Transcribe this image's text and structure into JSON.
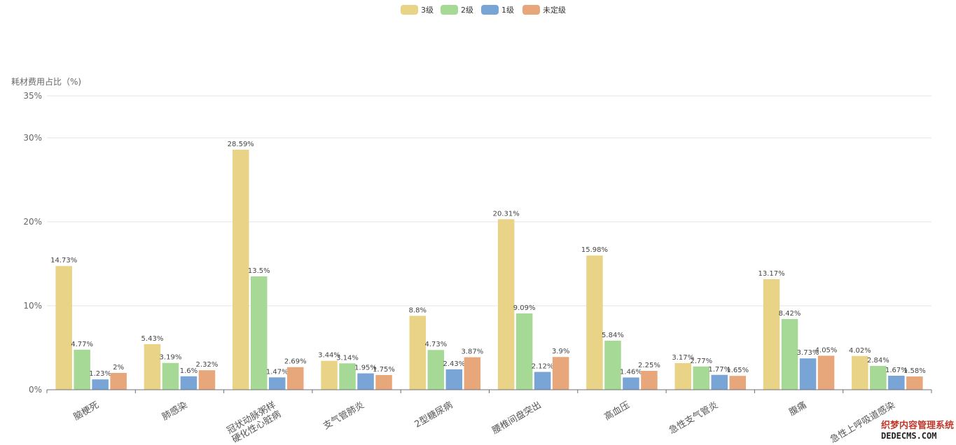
{
  "chart_data": {
    "type": "bar",
    "ylabel": "耗材费用占比（%)",
    "yticks": [
      "0%",
      "10%",
      "20%",
      "30%",
      "35%"
    ],
    "ytick_values": [
      0,
      10,
      20,
      30,
      35
    ],
    "ylim": [
      0,
      35
    ],
    "legend_position": "top-center",
    "categories": [
      "脑梗死",
      "肺感染",
      "冠状动脉粥样硬化性心脏病",
      "支气管肺炎",
      "2型糖尿病",
      "腰椎间盘突出",
      "高血压",
      "急性支气管炎",
      "腹痛",
      "急性上呼吸道感染"
    ],
    "category_lines": [
      [
        "脑梗死"
      ],
      [
        "肺感染"
      ],
      [
        "冠状动脉粥样",
        "硬化性心脏病"
      ],
      [
        "支气管肺炎"
      ],
      [
        "2型糖尿病"
      ],
      [
        "腰椎间盘突出"
      ],
      [
        "高血压"
      ],
      [
        "急性支气管炎"
      ],
      [
        "腹痛"
      ],
      [
        "急性上呼吸道感染"
      ]
    ],
    "series": [
      {
        "name": "3级",
        "color": "#e9d387",
        "values": [
          14.73,
          5.43,
          28.59,
          3.44,
          8.8,
          20.31,
          15.98,
          3.17,
          13.17,
          4.02
        ],
        "labels": [
          "14.73%",
          "5.43%",
          "28.59%",
          "3.44%",
          "8.8%",
          "20.31%",
          "15.98%",
          "3.17%",
          "13.17%",
          "4.02%"
        ]
      },
      {
        "name": "2级",
        "color": "#a6d995",
        "values": [
          4.77,
          3.19,
          13.5,
          3.14,
          4.73,
          9.09,
          5.84,
          2.77,
          8.42,
          2.84
        ],
        "labels": [
          "4.77%",
          "3.19%",
          "13.5%",
          "3.14%",
          "4.73%",
          "9.09%",
          "5.84%",
          "2.77%",
          "8.42%",
          "2.84%"
        ]
      },
      {
        "name": "1级",
        "color": "#78a4d6",
        "values": [
          1.23,
          1.6,
          1.47,
          1.95,
          2.43,
          2.12,
          1.46,
          1.77,
          3.73,
          1.67
        ],
        "labels": [
          "1.23%",
          "1.6%",
          "1.47%",
          "1.95%",
          "2.43%",
          "2.12%",
          "1.46%",
          "1.77%",
          "3.73%",
          "1.67%"
        ]
      },
      {
        "name": "未定级",
        "color": "#e8a77b",
        "values": [
          2,
          2.32,
          2.69,
          1.75,
          3.87,
          3.9,
          2.25,
          1.65,
          4.05,
          1.58
        ],
        "labels": [
          "2%",
          "2.32%",
          "2.69%",
          "1.75%",
          "3.87%",
          "3.9%",
          "2.25%",
          "1.65%",
          "4.05%",
          "1.58%"
        ]
      }
    ]
  },
  "watermark": {
    "line1": "织梦内容管理系统",
    "line2": "DEDECMS.COM"
  }
}
